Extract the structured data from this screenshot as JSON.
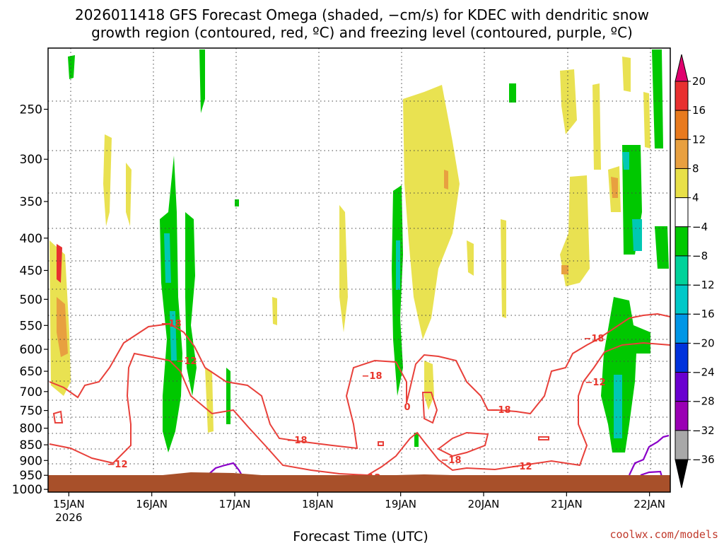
{
  "chart_data": {
    "type": "heatmap",
    "title": [
      "2026011418 GFS Forecast Omega (shaded, −cm/s) for KDEC with dendritic snow",
      "growth region (contoured, red, ºC) and freezing level (contoured, purple, ºC)"
    ],
    "xlabel": "Forecast Time (UTC)",
    "x_ticks": [
      {
        "label": "15JAN",
        "sub": "2026",
        "hour": 6
      },
      {
        "label": "16JAN",
        "sub": "",
        "hour": 30
      },
      {
        "label": "17JAN",
        "sub": "",
        "hour": 54
      },
      {
        "label": "18JAN",
        "sub": "",
        "hour": 78
      },
      {
        "label": "19JAN",
        "sub": "",
        "hour": 102
      },
      {
        "label": "20JAN",
        "sub": "",
        "hour": 126
      },
      {
        "label": "21JAN",
        "sub": "",
        "hour": 150
      },
      {
        "label": "22JAN",
        "sub": "",
        "hour": 174
      }
    ],
    "xlim_hours": [
      0,
      180
    ],
    "y_ticks": [
      "250",
      "300",
      "350",
      "400",
      "450",
      "500",
      "550",
      "600",
      "650",
      "700",
      "750",
      "800",
      "850",
      "900",
      "950",
      "1000"
    ],
    "ylim_hpa": [
      200,
      1010
    ],
    "colorbar": {
      "labels": [
        "20",
        "16",
        "12",
        "8",
        "4",
        "−4",
        "−8",
        "−12",
        "−16",
        "−20",
        "−24",
        "−28",
        "−32",
        "−36"
      ],
      "colors": [
        "#e8e800",
        "#f0a000",
        "#e87a00",
        "#e8e64c",
        "#ffffff",
        "#00c800",
        "#00d28c",
        "#00c8c8",
        "#0096e6",
        "#0032dc",
        "#6a00d0",
        "#9a00b4",
        "#a0a0a0",
        "#000000"
      ],
      "top_color": "#e0006e",
      "bottom_color": "#000000"
    },
    "series": [
      {
        "name": "Omega shaded",
        "type": "heatmap"
      },
      {
        "name": "Dendritic growth region (-12 / -18 °C)",
        "type": "contour",
        "color": "#e8352b",
        "contour_labels": [
          "−18",
          "−12",
          "−18",
          "−12",
          "−18",
          "−12",
          "0",
          "−18",
          "−18",
          "−12",
          "−18",
          "−12"
        ]
      },
      {
        "name": "Freezing level",
        "type": "contour",
        "color": "#8a00c8"
      }
    ]
  },
  "credit": "coolwx.com/models"
}
